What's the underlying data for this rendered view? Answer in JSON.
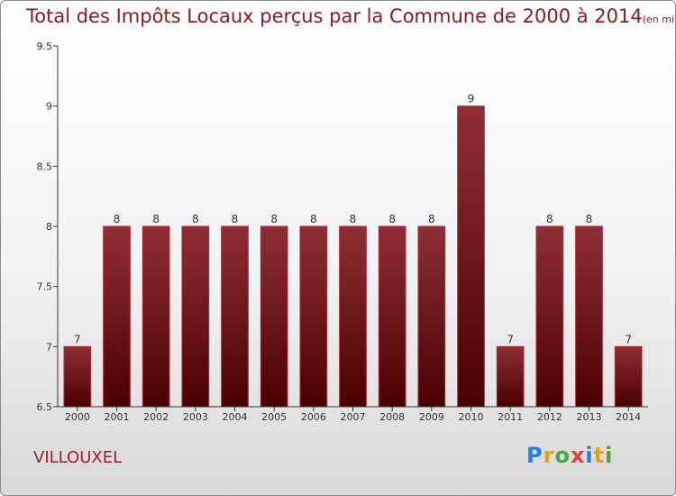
{
  "chart_data": {
    "type": "bar",
    "title": "Total des Impôts Locaux perçus par la Commune de 2000 à 2014",
    "subtitle": "(en milliers d'€)",
    "categories": [
      "2000",
      "2001",
      "2002",
      "2003",
      "2004",
      "2005",
      "2006",
      "2007",
      "2008",
      "2009",
      "2010",
      "2011",
      "2012",
      "2013",
      "2014"
    ],
    "values": [
      7,
      8,
      8,
      8,
      8,
      8,
      8,
      8,
      8,
      8,
      9,
      7,
      8,
      8,
      7
    ],
    "ylim": [
      6.5,
      9.5
    ],
    "yticks": [
      6.5,
      7,
      7.5,
      8,
      8.5,
      9,
      9.5
    ],
    "ytick_labels": [
      "6.5",
      "7",
      "7.5",
      "8",
      "8.5",
      "9",
      "9.5"
    ],
    "grid": false,
    "colors": {
      "bar_top": "#8e2e36",
      "bar_bottom": "#4a0000",
      "bar_edge": "#b0283a",
      "text": "#8b1a22"
    }
  },
  "footer": {
    "commune": "VILLOUXEL",
    "logo_letters": [
      "P",
      "r",
      "o",
      "x",
      "i",
      "t",
      "i"
    ]
  }
}
